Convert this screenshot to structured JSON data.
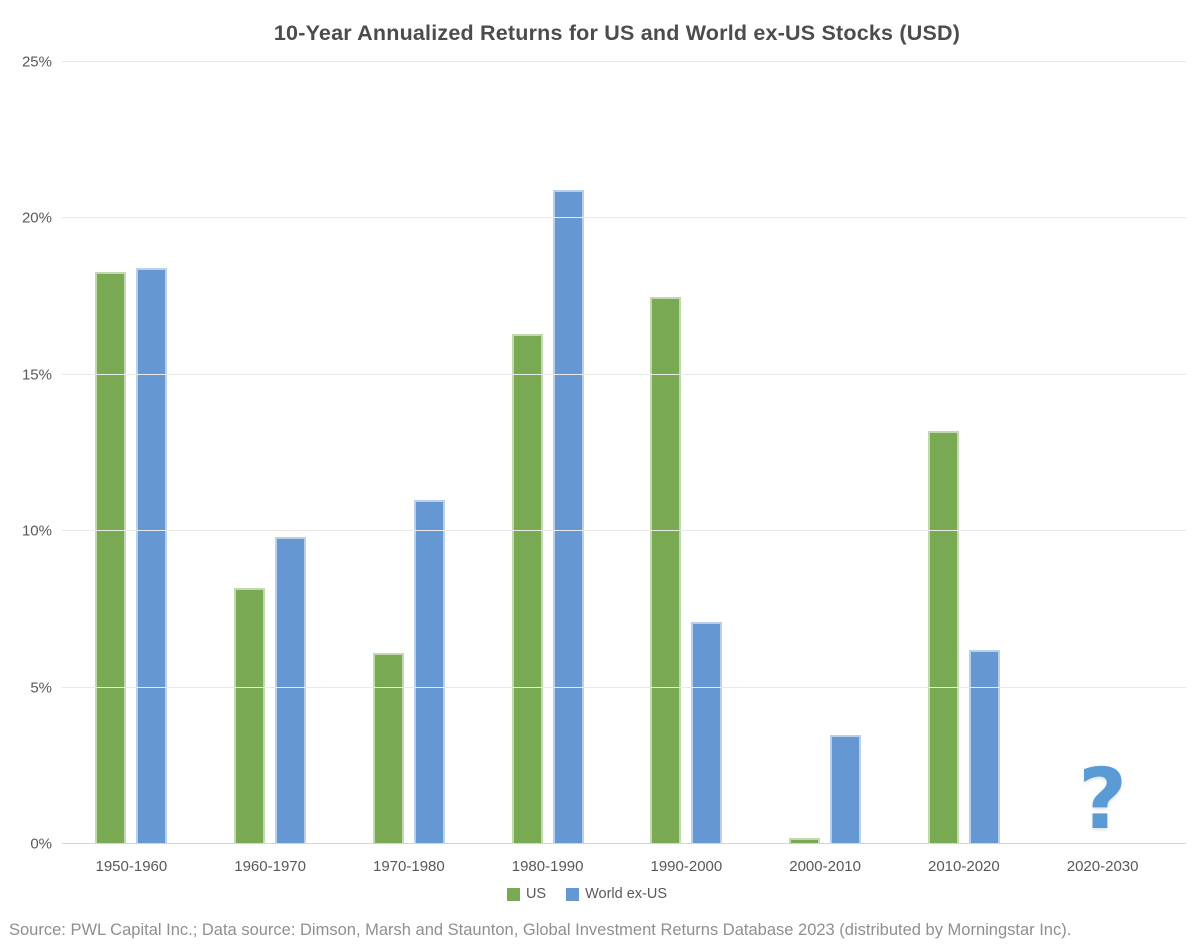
{
  "chart_data": {
    "type": "bar",
    "title": "10-Year Annualized Returns for US and World ex-US Stocks (USD)",
    "categories": [
      "1950-1960",
      "1960-1970",
      "1970-1980",
      "1980-1990",
      "1990-2000",
      "2000-2010",
      "2010-2020",
      "2020-2030"
    ],
    "series": [
      {
        "name": "US",
        "color": "#79a952",
        "values": [
          18.3,
          8.2,
          6.1,
          16.3,
          17.5,
          0.2,
          13.2,
          null
        ]
      },
      {
        "name": "World ex-US",
        "color": "#6598d3",
        "values": [
          18.4,
          9.8,
          11.0,
          20.9,
          7.1,
          3.5,
          6.2,
          null
        ]
      }
    ],
    "ylabel": "",
    "xlabel": "",
    "ylim": [
      0,
      25
    ],
    "yticks": [
      {
        "value": 0,
        "label": "0%"
      },
      {
        "value": 5,
        "label": "5%"
      },
      {
        "value": 10,
        "label": "10%"
      },
      {
        "value": 15,
        "label": "15%"
      },
      {
        "value": 20,
        "label": "20%"
      },
      {
        "value": 25,
        "label": "25%"
      }
    ],
    "grid": true,
    "legend_position": "bottom",
    "annotation": {
      "text": "?",
      "category": "2020-2030",
      "color": "#5b9bd5"
    }
  },
  "footer": {
    "text": "Source: PWL Capital Inc.; Data source: Dimson, Marsh and Staunton, Global Investment Returns Database 2023 (distributed by Morningstar Inc)."
  }
}
